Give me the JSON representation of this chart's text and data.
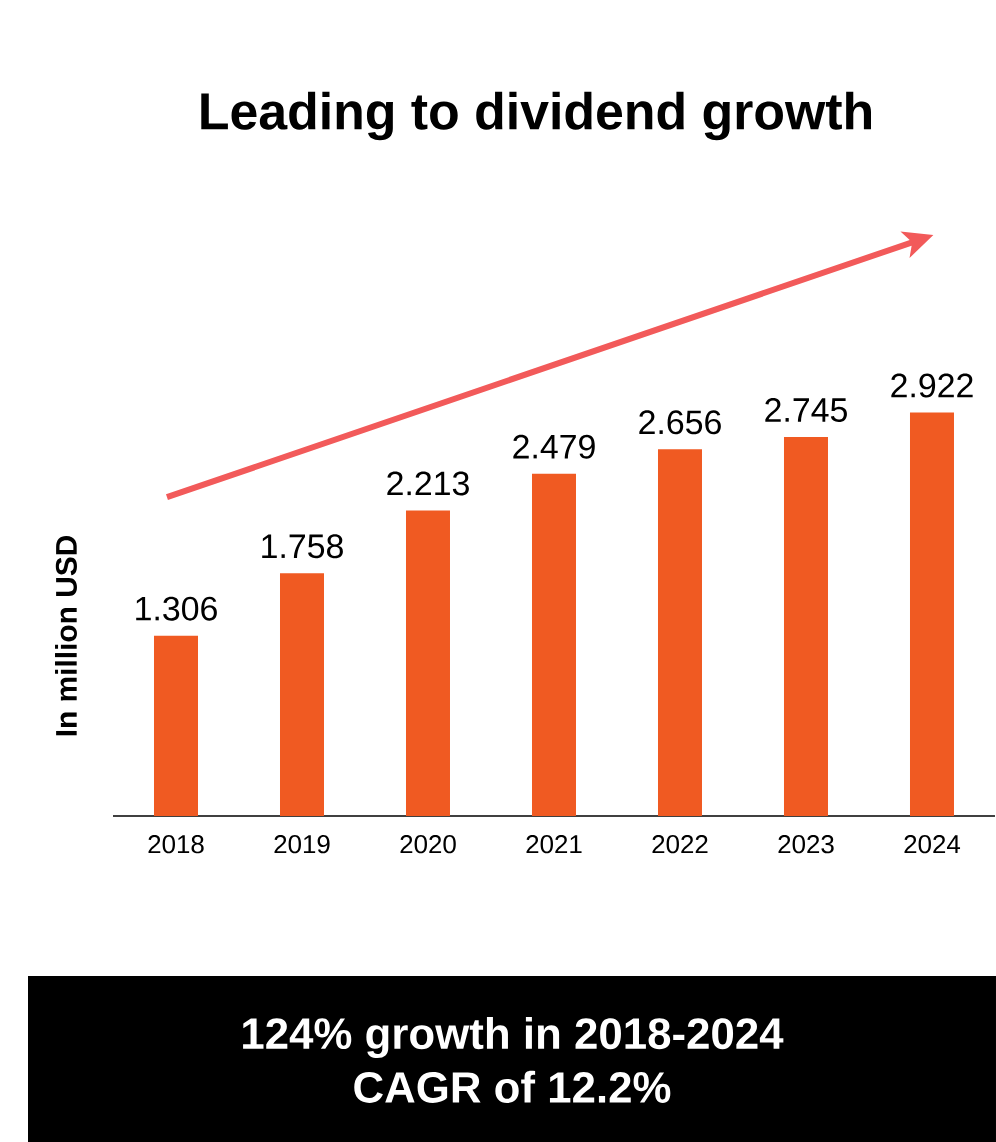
{
  "chart_data": {
    "type": "bar",
    "title": "Leading to dividend growth",
    "ylabel": "In million USD",
    "categories": [
      "2018",
      "2019",
      "2020",
      "2021",
      "2022",
      "2023",
      "2024"
    ],
    "values": [
      1.306,
      1.758,
      2.213,
      2.479,
      2.656,
      2.745,
      2.922
    ],
    "color": "#f05a22",
    "data_labels": true,
    "annotations": [
      "124% growth in 2018-2024",
      "CAGR of 12.2%"
    ]
  }
}
